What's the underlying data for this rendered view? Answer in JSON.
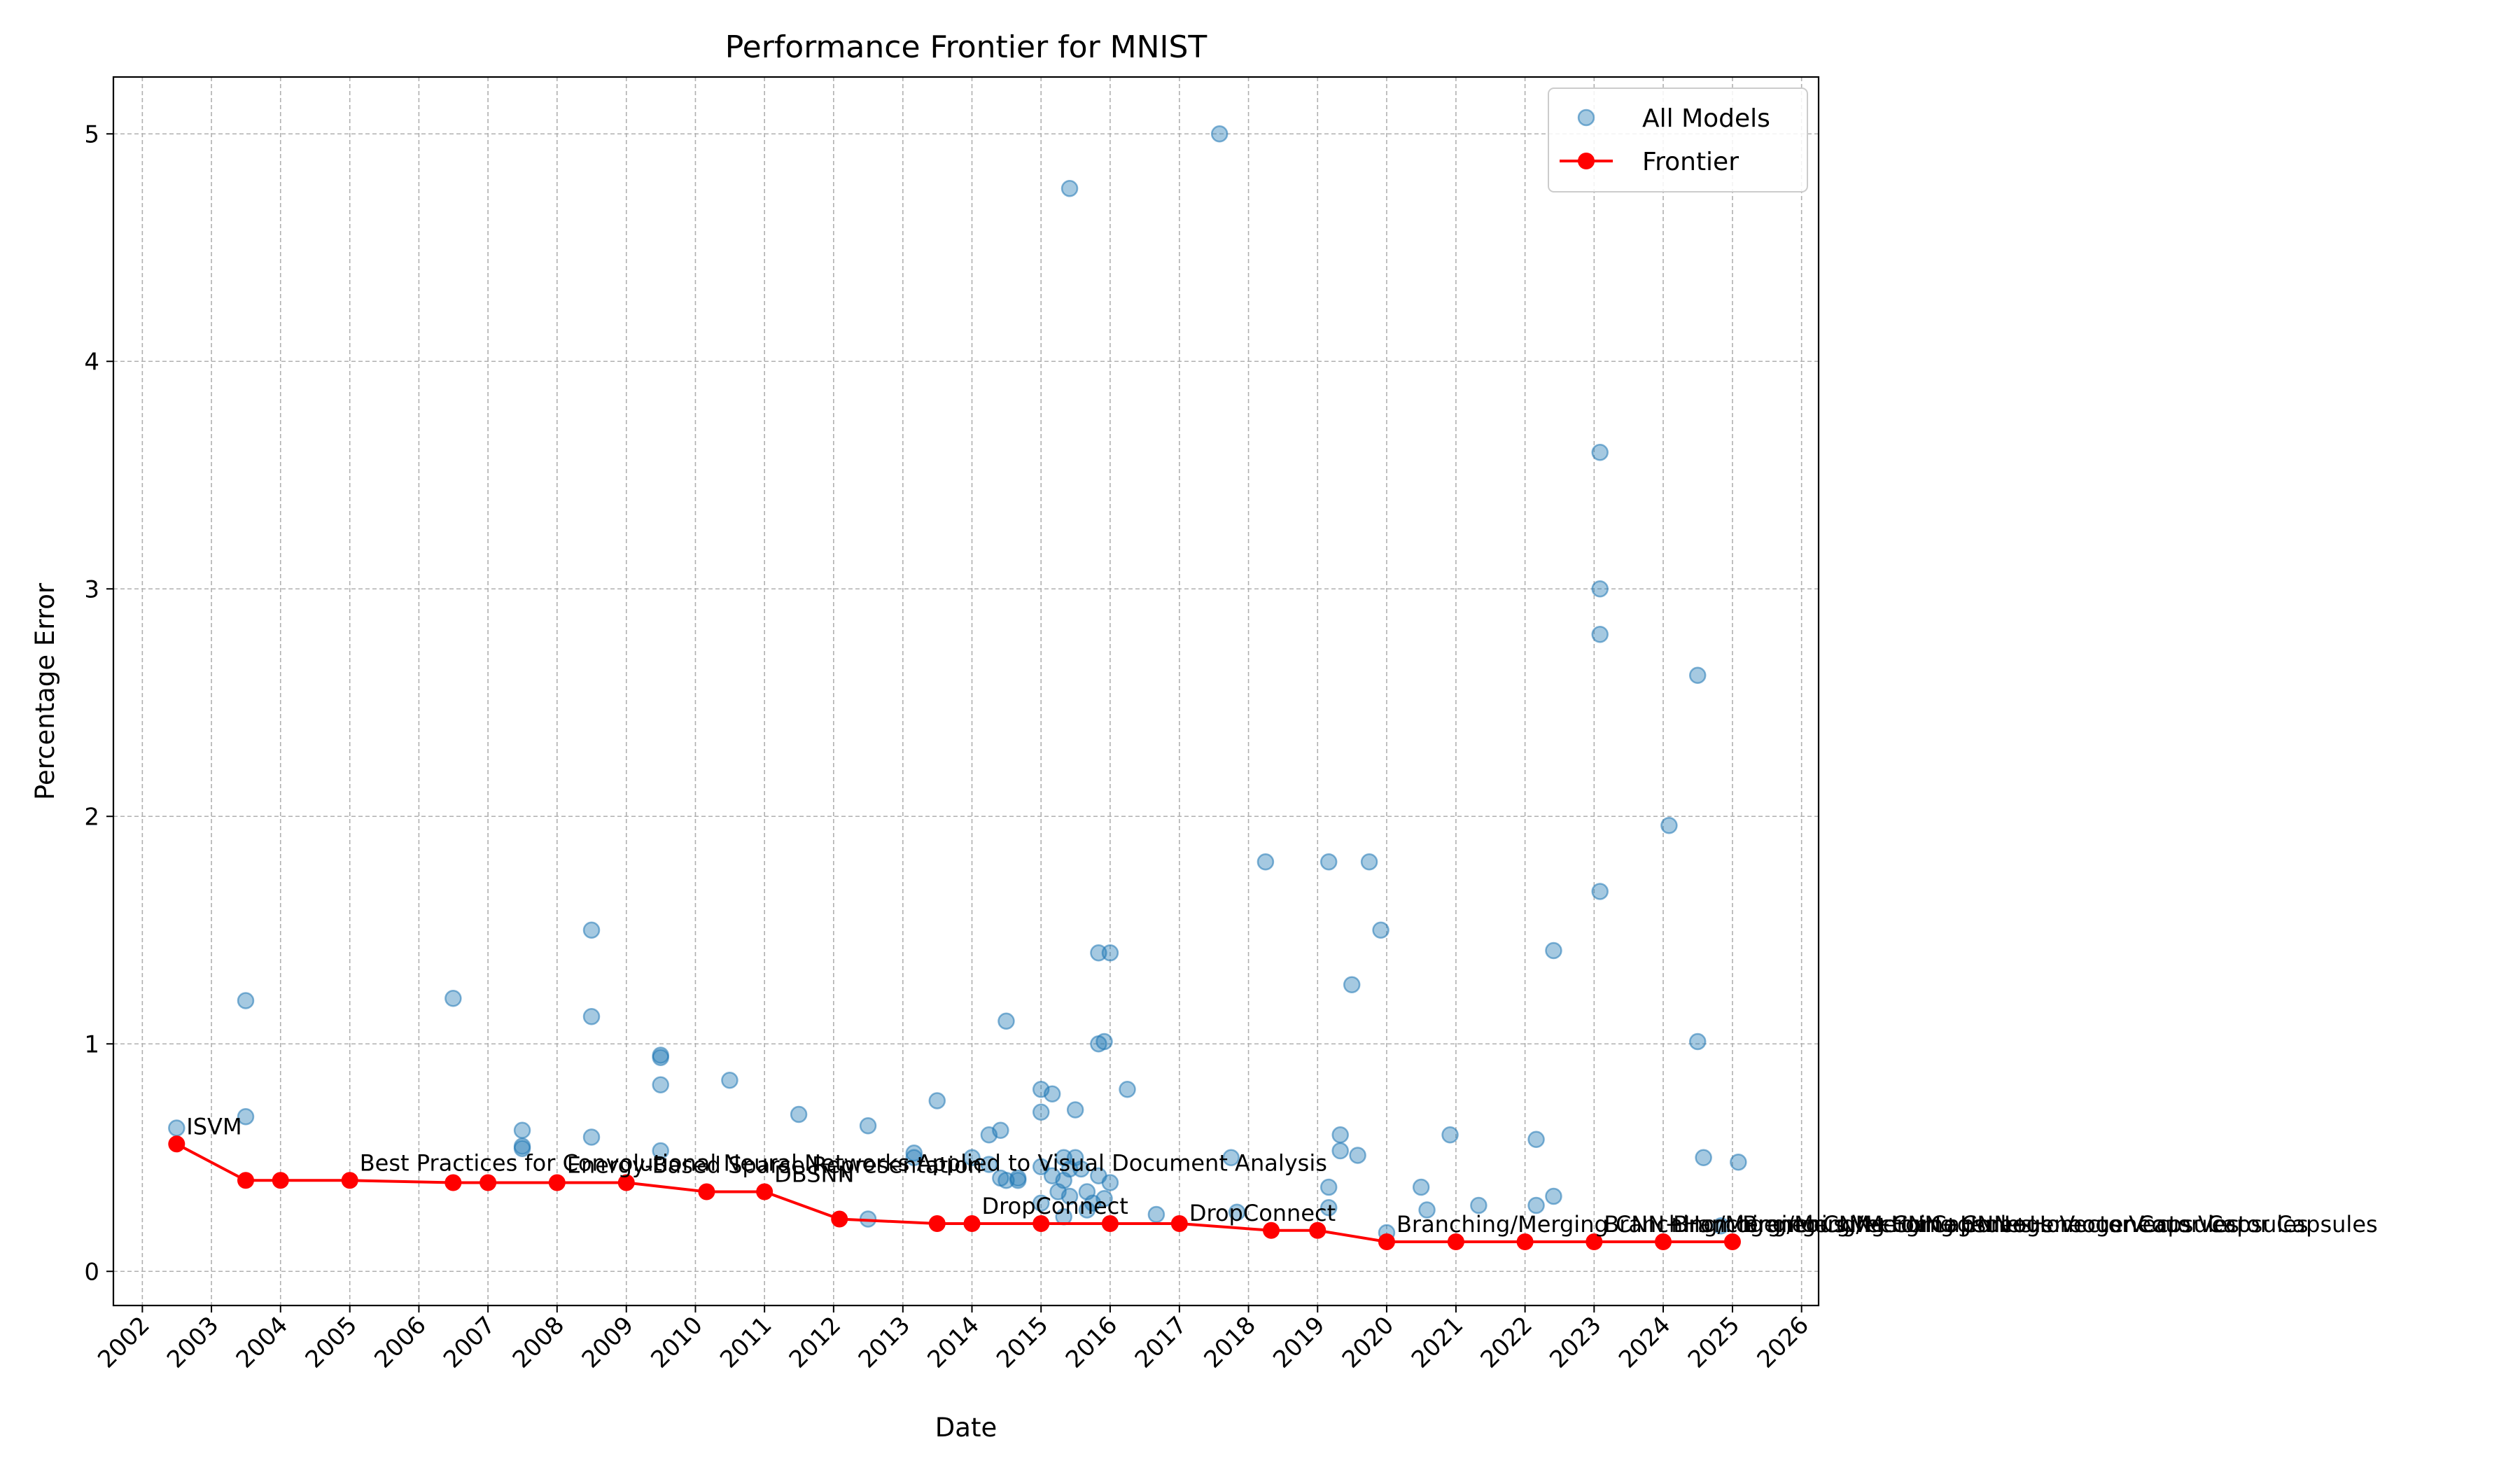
{
  "chart_data": {
    "type": "scatter",
    "title": "Performance Frontier for MNIST",
    "xlabel": "Date",
    "ylabel": "Percentage Error",
    "xlim": [
      "2001-08-01",
      "2026-04-01"
    ],
    "ylim": [
      -0.15,
      5.25
    ],
    "x_ticks": [
      "2002",
      "2003",
      "2004",
      "2005",
      "2006",
      "2007",
      "2008",
      "2009",
      "2010",
      "2011",
      "2012",
      "2013",
      "2014",
      "2015",
      "2016",
      "2017",
      "2018",
      "2019",
      "2020",
      "2021",
      "2022",
      "2023",
      "2024",
      "2025",
      "2026"
    ],
    "y_ticks": [
      0,
      1,
      2,
      3,
      4,
      5
    ],
    "grid": true,
    "legend": {
      "location": "upper right",
      "entries": [
        "All Models",
        "Frontier"
      ]
    },
    "colors": {
      "all_models": "#1f77b4",
      "frontier": "#ff0000"
    },
    "series": [
      {
        "name": "All Models",
        "kind": "scatter",
        "points": [
          {
            "x": "2002-07-01",
            "y": 0.63
          },
          {
            "x": "2003-07-01",
            "y": 1.19
          },
          {
            "x": "2003-07-01",
            "y": 0.68
          },
          {
            "x": "2006-07-01",
            "y": 1.2
          },
          {
            "x": "2007-07-01",
            "y": 0.62
          },
          {
            "x": "2007-07-01",
            "y": 0.54
          },
          {
            "x": "2007-07-01",
            "y": 0.55
          },
          {
            "x": "2008-07-01",
            "y": 1.5
          },
          {
            "x": "2008-07-01",
            "y": 1.12
          },
          {
            "x": "2008-07-01",
            "y": 0.59
          },
          {
            "x": "2009-07-01",
            "y": 0.95
          },
          {
            "x": "2009-07-01",
            "y": 0.94
          },
          {
            "x": "2009-07-01",
            "y": 0.82
          },
          {
            "x": "2009-07-01",
            "y": 0.53
          },
          {
            "x": "2010-07-01",
            "y": 0.84
          },
          {
            "x": "2011-07-01",
            "y": 0.69
          },
          {
            "x": "2012-07-01",
            "y": 0.64
          },
          {
            "x": "2012-07-01",
            "y": 0.23
          },
          {
            "x": "2013-03-01",
            "y": 0.52
          },
          {
            "x": "2013-03-01",
            "y": 0.5
          },
          {
            "x": "2013-07-01",
            "y": 0.75
          },
          {
            "x": "2014-01-01",
            "y": 0.5
          },
          {
            "x": "2014-04-01",
            "y": 0.6
          },
          {
            "x": "2014-04-01",
            "y": 0.47
          },
          {
            "x": "2014-06-01",
            "y": 0.62
          },
          {
            "x": "2014-06-01",
            "y": 0.41
          },
          {
            "x": "2014-07-01",
            "y": 1.1
          },
          {
            "x": "2014-07-01",
            "y": 0.4
          },
          {
            "x": "2014-09-01",
            "y": 0.41
          },
          {
            "x": "2014-09-01",
            "y": 0.4
          },
          {
            "x": "2015-01-01",
            "y": 0.8
          },
          {
            "x": "2015-01-01",
            "y": 0.7
          },
          {
            "x": "2015-01-01",
            "y": 0.46
          },
          {
            "x": "2015-01-01",
            "y": 0.3
          },
          {
            "x": "2015-03-01",
            "y": 0.78
          },
          {
            "x": "2015-03-01",
            "y": 0.42
          },
          {
            "x": "2015-04-01",
            "y": 0.35
          },
          {
            "x": "2015-05-01",
            "y": 0.5
          },
          {
            "x": "2015-05-01",
            "y": 0.4
          },
          {
            "x": "2015-05-01",
            "y": 0.24
          },
          {
            "x": "2015-06-01",
            "y": 4.76
          },
          {
            "x": "2015-06-01",
            "y": 0.45
          },
          {
            "x": "2015-06-01",
            "y": 0.33
          },
          {
            "x": "2015-07-01",
            "y": 0.71
          },
          {
            "x": "2015-07-01",
            "y": 0.5
          },
          {
            "x": "2015-08-01",
            "y": 0.45
          },
          {
            "x": "2015-09-01",
            "y": 0.35
          },
          {
            "x": "2015-09-01",
            "y": 0.27
          },
          {
            "x": "2015-10-01",
            "y": 0.3
          },
          {
            "x": "2015-11-01",
            "y": 1.4
          },
          {
            "x": "2015-11-01",
            "y": 1.0
          },
          {
            "x": "2015-11-01",
            "y": 0.42
          },
          {
            "x": "2015-12-01",
            "y": 1.01
          },
          {
            "x": "2015-12-01",
            "y": 0.32
          },
          {
            "x": "2016-01-01",
            "y": 1.4
          },
          {
            "x": "2016-01-01",
            "y": 0.39
          },
          {
            "x": "2016-04-01",
            "y": 0.8
          },
          {
            "x": "2016-09-01",
            "y": 0.25
          },
          {
            "x": "2017-08-01",
            "y": 5.0
          },
          {
            "x": "2017-10-01",
            "y": 0.5
          },
          {
            "x": "2017-11-01",
            "y": 0.26
          },
          {
            "x": "2018-04-01",
            "y": 1.8
          },
          {
            "x": "2019-03-01",
            "y": 1.8
          },
          {
            "x": "2019-03-01",
            "y": 0.37
          },
          {
            "x": "2019-03-01",
            "y": 0.28
          },
          {
            "x": "2019-05-01",
            "y": 0.6
          },
          {
            "x": "2019-05-01",
            "y": 0.53
          },
          {
            "x": "2019-07-01",
            "y": 1.26
          },
          {
            "x": "2019-08-01",
            "y": 0.51
          },
          {
            "x": "2019-10-01",
            "y": 1.8
          },
          {
            "x": "2019-12-01",
            "y": 1.5
          },
          {
            "x": "2020-01-01",
            "y": 0.17
          },
          {
            "x": "2020-07-01",
            "y": 0.37
          },
          {
            "x": "2020-08-01",
            "y": 0.27
          },
          {
            "x": "2020-12-01",
            "y": 0.6
          },
          {
            "x": "2021-05-01",
            "y": 0.29
          },
          {
            "x": "2022-03-01",
            "y": 0.58
          },
          {
            "x": "2022-03-01",
            "y": 0.29
          },
          {
            "x": "2022-06-01",
            "y": 1.41
          },
          {
            "x": "2022-06-01",
            "y": 0.33
          },
          {
            "x": "2023-02-01",
            "y": 3.6
          },
          {
            "x": "2023-02-01",
            "y": 3.0
          },
          {
            "x": "2023-02-01",
            "y": 2.8
          },
          {
            "x": "2023-02-01",
            "y": 1.67
          },
          {
            "x": "2024-02-01",
            "y": 1.96
          },
          {
            "x": "2024-07-01",
            "y": 2.62
          },
          {
            "x": "2024-07-01",
            "y": 1.01
          },
          {
            "x": "2024-08-01",
            "y": 0.5
          },
          {
            "x": "2024-11-01",
            "y": 0.2
          },
          {
            "x": "2025-02-01",
            "y": 0.48
          }
        ]
      },
      {
        "name": "Frontier",
        "kind": "line",
        "points": [
          {
            "x": "2002-07-01",
            "y": 0.56
          },
          {
            "x": "2003-07-01",
            "y": 0.4
          },
          {
            "x": "2004-01-01",
            "y": 0.4
          },
          {
            "x": "2005-01-01",
            "y": 0.4
          },
          {
            "x": "2006-07-01",
            "y": 0.39
          },
          {
            "x": "2007-01-01",
            "y": 0.39
          },
          {
            "x": "2008-01-01",
            "y": 0.39
          },
          {
            "x": "2009-01-01",
            "y": 0.39
          },
          {
            "x": "2010-03-01",
            "y": 0.35
          },
          {
            "x": "2011-01-01",
            "y": 0.35
          },
          {
            "x": "2012-02-01",
            "y": 0.23
          },
          {
            "x": "2013-07-01",
            "y": 0.21
          },
          {
            "x": "2014-01-01",
            "y": 0.21
          },
          {
            "x": "2015-01-01",
            "y": 0.21
          },
          {
            "x": "2016-01-01",
            "y": 0.21
          },
          {
            "x": "2017-01-01",
            "y": 0.21
          },
          {
            "x": "2018-05-01",
            "y": 0.18
          },
          {
            "x": "2019-01-01",
            "y": 0.18
          },
          {
            "x": "2020-01-01",
            "y": 0.13
          },
          {
            "x": "2021-01-01",
            "y": 0.13
          },
          {
            "x": "2022-01-01",
            "y": 0.13
          },
          {
            "x": "2023-01-01",
            "y": 0.13
          },
          {
            "x": "2024-01-01",
            "y": 0.13
          },
          {
            "x": "2025-01-01",
            "y": 0.13
          }
        ]
      }
    ],
    "annotations": [
      {
        "text": "ISVM",
        "x": "2002-07-01",
        "y": 0.56
      },
      {
        "text": "Best Practices for Convolutional Neural Networks Applied to Visual Document Analysis",
        "x": "2005-01-01",
        "y": 0.4
      },
      {
        "text": "Energy-Based Sparse Representation",
        "x": "2008-01-01",
        "y": 0.39
      },
      {
        "text": "DBSNN",
        "x": "2011-01-01",
        "y": 0.35
      },
      {
        "text": "DropConnect",
        "x": "2014-01-01",
        "y": 0.21
      },
      {
        "text": "DropConnect",
        "x": "2017-01-01",
        "y": 0.18
      },
      {
        "text": "Branching/Merging CNN+Homogeneous Vector Capsules",
        "x": "2020-01-01",
        "y": 0.13
      },
      {
        "text": "Branching/Merging CNN+Homogeneous Vector Capsules",
        "x": "2023-01-01",
        "y": 0.13
      },
      {
        "text": "Branching/Merging CNN+Homogeneous Vector Capsules",
        "x": "2024-01-01",
        "y": 0.13
      },
      {
        "text": "Branching/Merging CNN+Homogeneous Vector Capsules",
        "x": "2025-01-01",
        "y": 0.13
      }
    ]
  }
}
